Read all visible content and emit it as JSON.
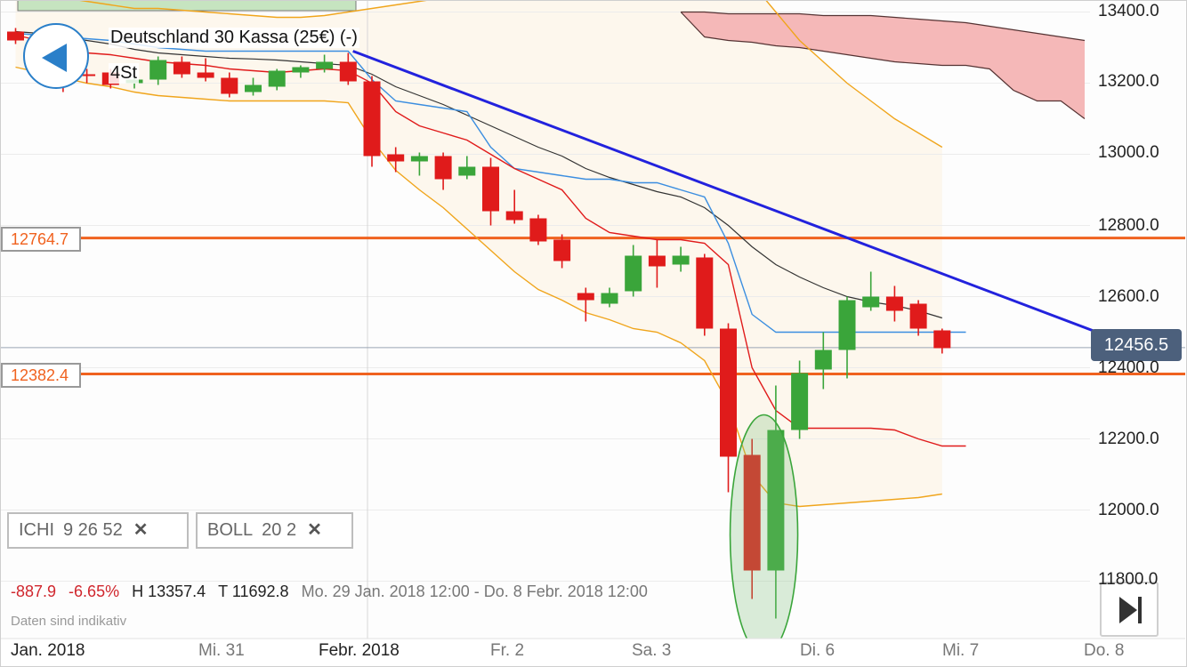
{
  "header": {
    "instrument": "Deutschland 30 Kassa (25€) (-)",
    "period": "4St"
  },
  "levels": [
    {
      "label": "12764.7",
      "value": 12764.7,
      "color": "#f0621f"
    },
    {
      "label": "12382.4",
      "value": 12382.4,
      "color": "#f0621f"
    }
  ],
  "current_price": {
    "label": "12456.5",
    "value": 12456.5
  },
  "indicators": [
    {
      "name": "ICHI",
      "params": "9  26  52"
    },
    {
      "name": "BOLL",
      "params": "20  2"
    }
  ],
  "stats": {
    "change": "-887.9",
    "change_pct": "-6.65%",
    "high": "H 13357.4",
    "low": "T 11692.8",
    "range": "Mo. 29 Jan. 2018 12:00 - Do. 8 Febr. 2018 12:00"
  },
  "disclaimer": "Daten sind indikativ",
  "colors": {
    "up": "#3aa53a",
    "down": "#e01b1b",
    "trendline": "#2222dd",
    "tenkan": "#e01b1b",
    "kijun": "#3b8ee0",
    "boll": "#f0a51c",
    "cloud_bear": "#f5b8b8",
    "cloud_bull": "#c6e4c0"
  },
  "chart_data": {
    "type": "candlestick",
    "y_ticks": [
      "13400.0",
      "13200.0",
      "13000.0",
      "12800.0",
      "12600.0",
      "12400.0",
      "12200.0",
      "12000.0",
      "11800.0"
    ],
    "y_tick_values": [
      13400,
      13200,
      13000,
      12800,
      12600,
      12400,
      12200,
      12000,
      11800
    ],
    "x_ticks": [
      {
        "label": "Jan. 2018",
        "bold": true
      },
      {
        "label": "Mi. 31",
        "bold": false
      },
      {
        "label": "Febr. 2018",
        "bold": true
      },
      {
        "label": "Fr. 2",
        "bold": false
      },
      {
        "label": "Sa. 3",
        "bold": false
      },
      {
        "label": "Di. 6",
        "bold": false
      },
      {
        "label": "Mi. 7",
        "bold": false
      },
      {
        "label": "Do. 8",
        "bold": false
      }
    ],
    "candles": [
      {
        "o": 13345,
        "h": 13355,
        "l": 13310,
        "c": 13320
      },
      {
        "o": 13330,
        "h": 13345,
        "l": 13235,
        "c": 13250
      },
      {
        "o": 13250,
        "h": 13270,
        "l": 13175,
        "c": 13225
      },
      {
        "o": 13225,
        "h": 13240,
        "l": 13200,
        "c": 13220
      },
      {
        "o": 13230,
        "h": 13240,
        "l": 13185,
        "c": 13195
      },
      {
        "o": 13200,
        "h": 13220,
        "l": 13185,
        "c": 13210
      },
      {
        "o": 13210,
        "h": 13275,
        "l": 13195,
        "c": 13265
      },
      {
        "o": 13260,
        "h": 13275,
        "l": 13215,
        "c": 13225
      },
      {
        "o": 13230,
        "h": 13270,
        "l": 13205,
        "c": 13215
      },
      {
        "o": 13215,
        "h": 13230,
        "l": 13160,
        "c": 13170
      },
      {
        "o": 13175,
        "h": 13215,
        "l": 13165,
        "c": 13195
      },
      {
        "o": 13190,
        "h": 13240,
        "l": 13180,
        "c": 13235
      },
      {
        "o": 13230,
        "h": 13250,
        "l": 13215,
        "c": 13245
      },
      {
        "o": 13240,
        "h": 13280,
        "l": 13230,
        "c": 13260
      },
      {
        "o": 13260,
        "h": 13285,
        "l": 13195,
        "c": 13205
      },
      {
        "o": 13205,
        "h": 13220,
        "l": 12965,
        "c": 12995
      },
      {
        "o": 13000,
        "h": 13020,
        "l": 12950,
        "c": 12980
      },
      {
        "o": 12980,
        "h": 13005,
        "l": 12940,
        "c": 12995
      },
      {
        "o": 12995,
        "h": 13005,
        "l": 12900,
        "c": 12930
      },
      {
        "o": 12940,
        "h": 12995,
        "l": 12930,
        "c": 12965
      },
      {
        "o": 12965,
        "h": 12990,
        "l": 12800,
        "c": 12840
      },
      {
        "o": 12840,
        "h": 12900,
        "l": 12805,
        "c": 12815
      },
      {
        "o": 12820,
        "h": 12830,
        "l": 12745,
        "c": 12755
      },
      {
        "o": 12760,
        "h": 12775,
        "l": 12680,
        "c": 12700
      },
      {
        "o": 12610,
        "h": 12625,
        "l": 12530,
        "c": 12590
      },
      {
        "o": 12580,
        "h": 12625,
        "l": 12570,
        "c": 12610
      },
      {
        "o": 12615,
        "h": 12745,
        "l": 12600,
        "c": 12715
      },
      {
        "o": 12715,
        "h": 12760,
        "l": 12625,
        "c": 12685
      },
      {
        "o": 12690,
        "h": 12740,
        "l": 12670,
        "c": 12715
      },
      {
        "o": 12710,
        "h": 12720,
        "l": 12490,
        "c": 12510
      },
      {
        "o": 12510,
        "h": 12525,
        "l": 12050,
        "c": 12150
      },
      {
        "o": 12155,
        "h": 12200,
        "l": 11750,
        "c": 11830
      },
      {
        "o": 11830,
        "h": 12350,
        "l": 11695,
        "c": 12225
      },
      {
        "o": 12225,
        "h": 12420,
        "l": 12200,
        "c": 12385
      },
      {
        "o": 12395,
        "h": 12500,
        "l": 12340,
        "c": 12450
      },
      {
        "o": 12450,
        "h": 12600,
        "l": 12370,
        "c": 12590
      },
      {
        "o": 12570,
        "h": 12670,
        "l": 12560,
        "c": 12600
      },
      {
        "o": 12600,
        "h": 12630,
        "l": 12530,
        "c": 12560
      },
      {
        "o": 12580,
        "h": 12590,
        "l": 12490,
        "c": 12510
      },
      {
        "o": 12505,
        "h": 12510,
        "l": 12440,
        "c": 12455
      }
    ],
    "overlays": {
      "tenkan": [
        13335,
        13320,
        13300,
        13285,
        13280,
        13270,
        13260,
        13255,
        13250,
        13240,
        13235,
        13230,
        13235,
        13240,
        13235,
        13200,
        13120,
        13080,
        13060,
        13040,
        13000,
        12960,
        12930,
        12900,
        12820,
        12780,
        12770,
        12760,
        12760,
        12750,
        12690,
        12400,
        12280,
        12230,
        12230,
        12230,
        12230,
        12225,
        12200,
        12180,
        12180
      ],
      "kijun": [
        13340,
        13335,
        13330,
        13325,
        13320,
        13310,
        13300,
        13295,
        13290,
        13290,
        13290,
        13290,
        13290,
        13290,
        13290,
        13210,
        13150,
        13140,
        13130,
        13120,
        13020,
        12960,
        12950,
        12940,
        12930,
        12930,
        12920,
        12920,
        12900,
        12880,
        12750,
        12550,
        12500,
        12500,
        12500,
        12500,
        12500,
        12500,
        12500,
        12500,
        12500
      ],
      "boll_upper": [
        13460,
        13450,
        13440,
        13430,
        13420,
        13410,
        13410,
        13405,
        13400,
        13395,
        13390,
        13385,
        13385,
        13390,
        13400,
        13410,
        13420,
        13430,
        13440,
        13445,
        13450,
        13455,
        13455,
        13450,
        13445,
        13440,
        13440,
        13450,
        13460,
        13480,
        13500,
        13480,
        13400,
        13320,
        13260,
        13200,
        13150,
        13100,
        13060,
        13020
      ],
      "boll_mid": [
        13345,
        13340,
        13330,
        13320,
        13310,
        13295,
        13285,
        13280,
        13275,
        13270,
        13268,
        13265,
        13260,
        13255,
        13250,
        13225,
        13190,
        13165,
        13140,
        13110,
        13080,
        13050,
        13020,
        12995,
        12960,
        12935,
        12915,
        12895,
        12880,
        12850,
        12800,
        12740,
        12690,
        12655,
        12625,
        12600,
        12585,
        12575,
        12560,
        12540
      ],
      "boll_lower": [
        13245,
        13230,
        13215,
        13200,
        13190,
        13175,
        13165,
        13160,
        13155,
        13150,
        13150,
        13150,
        13150,
        13150,
        13145,
        13040,
        12955,
        12900,
        12850,
        12790,
        12730,
        12670,
        12620,
        12590,
        12555,
        12535,
        12510,
        12500,
        12470,
        12420,
        12300,
        12100,
        12020,
        12010,
        12015,
        12020,
        12025,
        12030,
        12035,
        12045
      ]
    },
    "ichimoku_cloud": {
      "start_index": 28,
      "span_a": [
        13400,
        13400,
        13395,
        13395,
        13395,
        13395,
        13390,
        13390,
        13390,
        13385,
        13380,
        13375,
        13370,
        13360,
        13350,
        13340,
        13330,
        13320
      ],
      "span_b": [
        13400,
        13330,
        13320,
        13315,
        13305,
        13300,
        13290,
        13280,
        13270,
        13260,
        13255,
        13250,
        13250,
        13240,
        13180,
        13150,
        13150,
        13100
      ]
    },
    "trendline": {
      "from": {
        "i": 14.2,
        "v": 13290
      },
      "to": {
        "i": 47.5,
        "v": 12450
      }
    }
  }
}
